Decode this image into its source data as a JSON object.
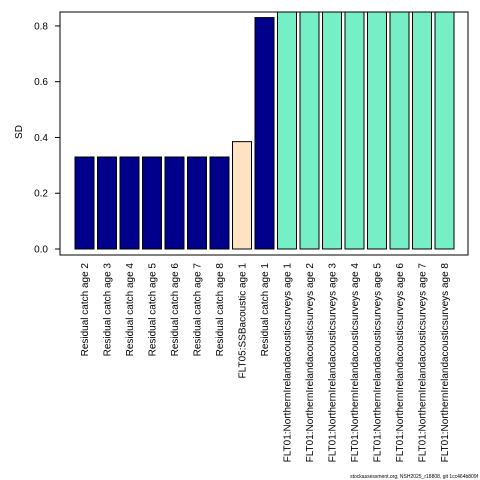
{
  "chart_data": {
    "type": "bar",
    "ylabel": "SD",
    "xlabel": "",
    "ylim": [
      0,
      0.85
    ],
    "yticks": [
      0.0,
      0.2,
      0.4,
      0.6,
      0.8
    ],
    "ytick_labels": [
      "0.0",
      "0.2",
      "0.4",
      "0.6",
      "0.8"
    ],
    "grid": false,
    "legend": "none",
    "categories": [
      "Residual catch age 2",
      "Residual catch age 3",
      "Residual catch age 4",
      "Residual catch age 5",
      "Residual catch age 6",
      "Residual catch age 7",
      "Residual catch age 8",
      "FLT05:SSBacoustic age 1",
      "Residual catch age 1",
      "FLT01:NorthernIrelandacousticsurveys age 1",
      "FLT01:NorthernIrelandacousticsurveys age 2",
      "FLT01:NorthernIrelandacousticsurveys age 3",
      "FLT01:NorthernIrelandacousticsurveys age 4",
      "FLT01:NorthernIrelandacousticsurveys age 5",
      "FLT01:NorthernIrelandacousticsurveys age 6",
      "FLT01:NorthernIrelandacousticsurveys age 7",
      "FLT01:NorthernIrelandacousticsurveys age 8"
    ],
    "values": [
      0.33,
      0.33,
      0.33,
      0.33,
      0.33,
      0.33,
      0.33,
      0.385,
      0.83,
      0.85,
      0.85,
      0.85,
      0.85,
      0.85,
      0.85,
      0.85,
      0.85
    ],
    "colors": [
      "#00008B",
      "#00008B",
      "#00008B",
      "#00008B",
      "#00008B",
      "#00008B",
      "#00008B",
      "#FFE4C4",
      "#00008B",
      "#76EEC6",
      "#76EEC6",
      "#76EEC6",
      "#76EEC6",
      "#76EEC6",
      "#76EEC6",
      "#76EEC6",
      "#76EEC6"
    ]
  },
  "footer_text": "stockassessment.org, NSH2025_r18808, git 1cc464b809f"
}
